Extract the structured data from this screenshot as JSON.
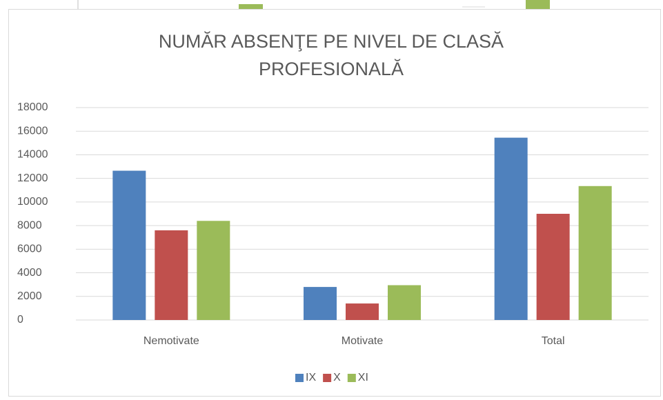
{
  "chart_data": {
    "type": "bar",
    "title": "NUMĂR ABSENŢE PE NIVEL DE CLASĂ PROFESIONALĂ",
    "categories": [
      "Nemotivate",
      "Motivate",
      "Total"
    ],
    "series": [
      {
        "name": "IX",
        "color": "#4f81bd",
        "values": [
          12650,
          2800,
          15450
        ]
      },
      {
        "name": "X",
        "color": "#c0504d",
        "values": [
          7600,
          1400,
          9000
        ]
      },
      {
        "name": "XI",
        "color": "#9bbb59",
        "values": [
          8400,
          2950,
          11350
        ]
      }
    ],
    "ylim": [
      0,
      18000
    ],
    "yticks": [
      0,
      2000,
      4000,
      6000,
      8000,
      10000,
      12000,
      14000,
      16000,
      18000
    ],
    "grid": true,
    "legend": "bottom"
  }
}
